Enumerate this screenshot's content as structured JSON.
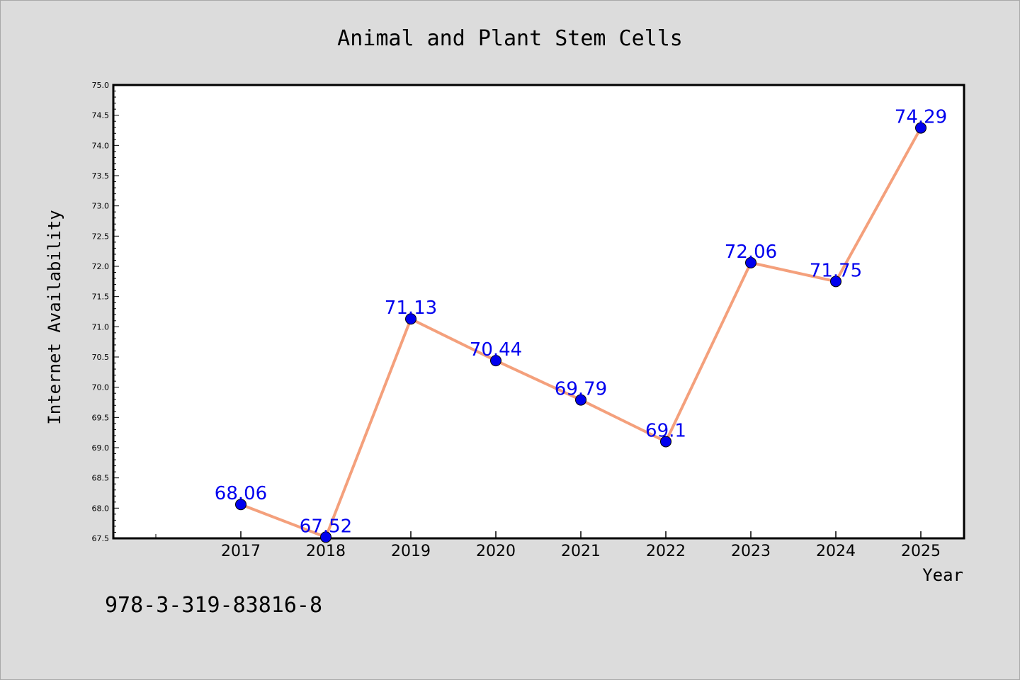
{
  "chart_data": {
    "type": "line",
    "title": "Animal and Plant Stem Cells",
    "xlabel": "Year",
    "ylabel": "Internet Availability",
    "categories": [
      "2017",
      "2018",
      "2019",
      "2020",
      "2021",
      "2022",
      "2023",
      "2024",
      "2025"
    ],
    "series": [
      {
        "values": [
          68.06,
          67.52,
          71.13,
          70.44,
          69.79,
          69.1,
          72.06,
          71.75,
          74.29
        ]
      }
    ],
    "data_labels": [
      "68.06",
      "67.52",
      "71.13",
      "70.44",
      "69.79",
      "69.1",
      "72.06",
      "71.75",
      "74.29"
    ],
    "ylim": [
      67.5,
      75.0
    ],
    "yticks": [
      "67.5",
      "68.0",
      "68.5",
      "69.0",
      "69.5",
      "70.0",
      "70.5",
      "71.0",
      "71.5",
      "72.0",
      "72.5",
      "73.0",
      "73.5",
      "74.0",
      "74.5",
      "75.0"
    ],
    "grid": false,
    "legend": "none",
    "colors": {
      "line": "#f4a07c",
      "marker": "#0000ee",
      "marker_edge": "#000000",
      "data_label": "#0000ee",
      "background": "#dcdcdc",
      "plot_background": "#ffffff"
    }
  },
  "annotation": "978-3-319-83816-8"
}
